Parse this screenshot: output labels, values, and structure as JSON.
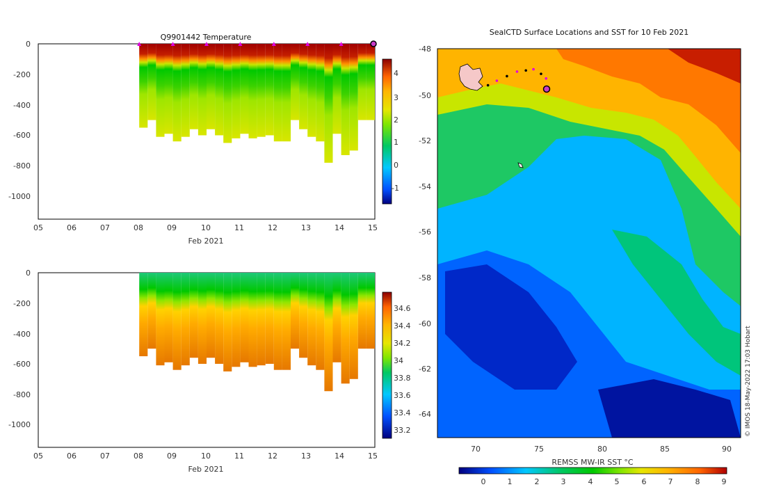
{
  "charts": {
    "temperature": {
      "title": "Q9901442  Temperature",
      "xlabel": "Feb 2021",
      "x_ticks": [
        "05",
        "06",
        "07",
        "08",
        "09",
        "10",
        "11",
        "12",
        "13",
        "14",
        "15"
      ],
      "y_ticks": [
        "0",
        "-200",
        "-400",
        "-600",
        "-800",
        "-1000"
      ],
      "colorbar_ticks": [
        "4",
        "3",
        "2",
        "1",
        "0",
        "-1"
      ],
      "colors": [
        "#00007f",
        "#0050ff",
        "#00c8ff",
        "#00c864",
        "#00c800",
        "#7fe600",
        "#e6e600",
        "#ffb400",
        "#ff6400",
        "#d21e00",
        "#8b0000"
      ]
    },
    "salinity": {
      "xlabel": "Feb 2021",
      "x_ticks": [
        "05",
        "06",
        "07",
        "08",
        "09",
        "10",
        "11",
        "12",
        "13",
        "14",
        "15"
      ],
      "y_ticks": [
        "0",
        "-200",
        "-400",
        "-600",
        "-800",
        "-1000"
      ],
      "colorbar_ticks": [
        "34.6",
        "34.4",
        "34.2",
        "34",
        "33.8",
        "33.6",
        "33.4",
        "33.2"
      ]
    },
    "map": {
      "title": "SealCTD Surface Locations and SST for 10 Feb 2021",
      "y_ticks": [
        "-48",
        "-50",
        "-52",
        "-54",
        "-56",
        "-58",
        "-60",
        "-62",
        "-64"
      ],
      "x_ticks": [
        "70",
        "75",
        "80",
        "85",
        "90"
      ],
      "colorbar_label": "REMSS MW-IR SST °C",
      "colorbar_ticks": [
        "0",
        "1",
        "2",
        "3",
        "4",
        "5",
        "6",
        "7",
        "8",
        "9"
      ],
      "credit": "© IMOS 18-May-2022 17:03 Hobart"
    }
  },
  "chart_data": [
    {
      "type": "heatmap",
      "title": "Q9901442  Temperature",
      "xlabel": "Feb 2021",
      "ylabel": "",
      "xlim": [
        5,
        15
      ],
      "ylim": [
        -1150,
        0
      ],
      "clim": [
        -1.8,
        4.8
      ],
      "x": [
        5,
        6,
        7,
        8,
        9,
        10,
        11,
        12,
        13,
        14,
        15
      ],
      "profile_starts": [
        8.0,
        8.25,
        8.5,
        8.75,
        9.0,
        9.25,
        9.5,
        9.75,
        10.0,
        10.25,
        10.5,
        10.75,
        11.0,
        11.25,
        11.5,
        11.75,
        12.0,
        12.25,
        12.5,
        12.75,
        13.0,
        13.25,
        13.5,
        13.75,
        14.0,
        14.25,
        14.5,
        14.75
      ],
      "profile_max_depth": [
        -550,
        -500,
        -610,
        -590,
        -640,
        -610,
        -560,
        -600,
        -560,
        -600,
        -650,
        -620,
        -590,
        -620,
        -610,
        -600,
        -640,
        -640,
        -500,
        -560,
        -610,
        -640,
        -780,
        -590,
        -730,
        -700,
        -500,
        -500
      ],
      "surface_markers": [
        8,
        9,
        10,
        11,
        12,
        13,
        14,
        15
      ],
      "layers": [
        {
          "depth_range": [
            0,
            -100
          ],
          "value": 4.2
        },
        {
          "depth_range": [
            -100,
            -220
          ],
          "value": 2.0
        },
        {
          "depth_range": [
            -220,
            -400
          ],
          "value": 1.6
        },
        {
          "depth_range": [
            -400,
            -800
          ],
          "value": 1.9
        }
      ]
    },
    {
      "type": "heatmap",
      "title": "",
      "xlabel": "Feb 2021",
      "ylabel": "",
      "xlim": [
        5,
        15
      ],
      "ylim": [
        -1150,
        0
      ],
      "clim": [
        33.1,
        34.75
      ],
      "x": [
        5,
        6,
        7,
        8,
        9,
        10,
        11,
        12,
        13,
        14,
        15
      ],
      "layers": [
        {
          "depth_range": [
            0,
            -150
          ],
          "value": 33.85
        },
        {
          "depth_range": [
            -150,
            -300
          ],
          "value": 34.2
        },
        {
          "depth_range": [
            -300,
            -500
          ],
          "value": 34.45
        },
        {
          "depth_range": [
            -500,
            -800
          ],
          "value": 34.55
        }
      ]
    },
    {
      "type": "heatmap",
      "title": "SealCTD Surface Locations and SST for 10 Feb 2021",
      "xlabel": "",
      "ylabel": "",
      "xlim": [
        67,
        91
      ],
      "ylim": [
        -65,
        -48
      ],
      "clim": [
        -0.8,
        9
      ],
      "track": [
        {
          "lon": 71.0,
          "lat": -49.6
        },
        {
          "lon": 71.7,
          "lat": -49.4
        },
        {
          "lon": 72.5,
          "lat": -49.2
        },
        {
          "lon": 73.3,
          "lat": -49.0
        },
        {
          "lon": 74.0,
          "lat": -48.95
        },
        {
          "lon": 74.6,
          "lat": -48.9
        },
        {
          "lon": 75.2,
          "lat": -49.1
        },
        {
          "lon": 75.6,
          "lat": -49.3
        },
        {
          "lon": 75.6,
          "lat": -49.8
        }
      ],
      "last_position": {
        "lon": 75.6,
        "lat": -49.8
      }
    }
  ]
}
